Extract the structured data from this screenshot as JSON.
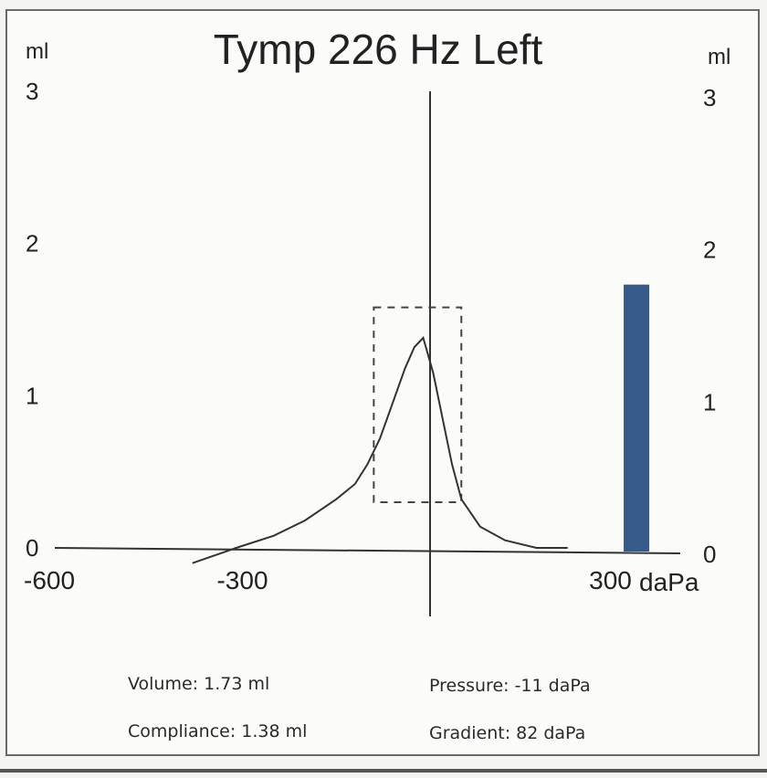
{
  "chart_data": {
    "type": "line",
    "title": "Tymp 226 Hz Left",
    "y_unit_left": "ml",
    "y_unit_right": "ml",
    "x_unit": "daPa",
    "xlim": [
      -600,
      400
    ],
    "ylim": [
      0,
      3
    ],
    "x_tick_labels": [
      "-600",
      "-300",
      "300"
    ],
    "x_ticks": [
      -600,
      -300,
      300
    ],
    "y_ticks_left": [
      "0",
      "1",
      "2",
      "3"
    ],
    "y_ticks_right": [
      "0",
      "1",
      "2",
      "3"
    ],
    "series": [
      {
        "x": [
          -380,
          -310,
          -250,
          -200,
          -150,
          -120,
          -100,
          -80,
          -60,
          -40,
          -25,
          -11,
          5,
          20,
          35,
          50,
          80,
          120,
          170,
          220
        ],
        "y": [
          -0.1,
          0.0,
          0.08,
          0.18,
          0.32,
          0.42,
          0.55,
          0.72,
          0.95,
          1.18,
          1.32,
          1.38,
          1.15,
          0.85,
          0.55,
          0.32,
          0.14,
          0.05,
          0.0,
          0.0
        ]
      }
    ],
    "volume_bar": {
      "x": 330,
      "value": 1.73,
      "color": "#365a89"
    },
    "dashed_box": {
      "x_range": [
        -90,
        50
      ],
      "y_range": [
        0.3,
        1.58
      ]
    },
    "vertical_line_x": 0,
    "grid": false,
    "legend": "none"
  },
  "info": {
    "volume": "Volume: 1.73 ml",
    "compliance": "Compliance: 1.38 ml",
    "pressure": "Pressure: -11 daPa",
    "gradient": "Gradient: 82 daPa"
  }
}
